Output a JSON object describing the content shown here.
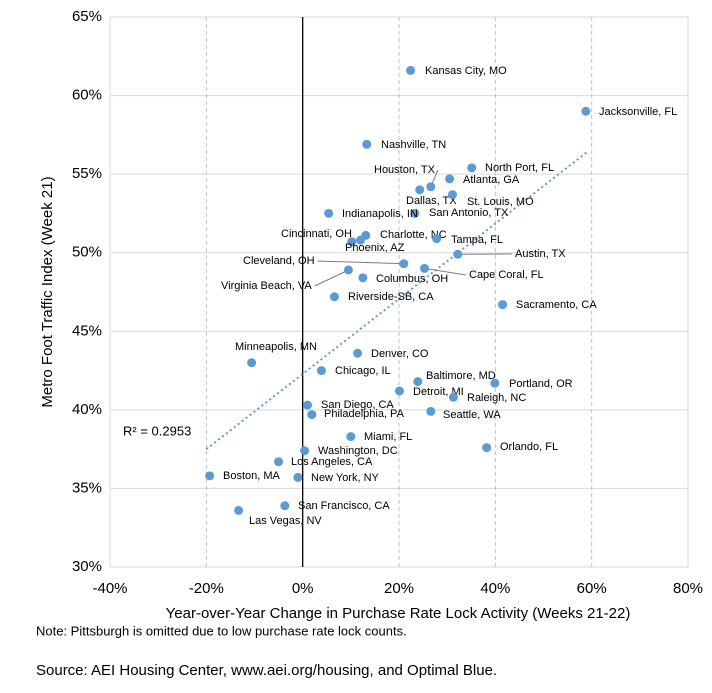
{
  "chart_data": {
    "type": "scatter",
    "x_label": "Year-over-Year Change in Purchase Rate Lock Activity (Weeks 21-22)",
    "y_label": "Metro Foot Traffic Index (Week 21)",
    "annotation": "R² = 0.2953",
    "note": "Note: Pittsburgh is omitted due to low purchase rate lock counts.",
    "source": "Source: AEI Housing Center, www.aei.org/housing, and Optimal Blue.",
    "color": "#5b9bd5",
    "grid": true,
    "xlim": [
      -40,
      80
    ],
    "ylim": [
      30,
      65
    ],
    "xticks": [
      {
        "value": -40,
        "label": "-40%"
      },
      {
        "value": -20,
        "label": "-20%"
      },
      {
        "value": 0,
        "label": "0%"
      },
      {
        "value": 20,
        "label": "20%"
      },
      {
        "value": 40,
        "label": "40%"
      },
      {
        "value": 60,
        "label": "60%"
      },
      {
        "value": 80,
        "label": "80%"
      }
    ],
    "yticks": [
      {
        "value": 30,
        "label": "30%"
      },
      {
        "value": 35,
        "label": "35%"
      },
      {
        "value": 40,
        "label": "40%"
      },
      {
        "value": 45,
        "label": "45%"
      },
      {
        "value": 50,
        "label": "50%"
      },
      {
        "value": 55,
        "label": "55%"
      },
      {
        "value": 60,
        "label": "60%"
      },
      {
        "value": 65,
        "label": "65%"
      }
    ],
    "trendline": {
      "x": [
        -20,
        59
      ],
      "y": [
        37.5,
        56.4
      ]
    },
    "labels": [
      "Kansas City, MO",
      "Jacksonville, FL",
      "Nashville, TN",
      "North Port, FL",
      "Atlanta, GA",
      "Houston, TX",
      "Dallas, TX",
      "St. Louis, MO",
      "San Antonio, TX",
      "Indianapolis, IN",
      "Cincinnati, OH",
      "Charlotte, NC",
      "Phoenix, AZ",
      "Tampa, FL",
      "Austin, TX",
      "Cleveland, OH",
      "Cape Coral, FL",
      "Virginia Beach, VA",
      "Columbus, OH",
      "Riverside-SB, CA",
      "Sacramento, CA",
      "Minneapolis, MN",
      "Denver, CO",
      "Chicago, IL",
      "Baltimore, MD",
      "Portland, OR",
      "Detroit, MI",
      "Raleigh, NC",
      "San Diego, CA",
      "Philadelphia, PA",
      "Seattle, WA",
      "Miami, FL",
      "Orlando, FL",
      "Washington, DC",
      "Los Angeles, CA",
      "Boston, MA",
      "New York, NY",
      "San Francisco, CA",
      "Las Vegas, NV"
    ],
    "x": [
      22.4,
      58.8,
      13.3,
      35.1,
      30.5,
      26.6,
      24.3,
      31.1,
      23.3,
      5.4,
      10.2,
      13.1,
      12.0,
      27.8,
      32.2,
      21.0,
      25.3,
      9.5,
      12.5,
      6.6,
      41.5,
      -10.6,
      11.4,
      3.9,
      23.9,
      39.9,
      20.1,
      31.3,
      1.0,
      1.9,
      26.6,
      10.0,
      38.2,
      0.4,
      -5.0,
      -19.3,
      -1.0,
      -3.7,
      -13.3
    ],
    "values": [
      61.6,
      59.0,
      56.9,
      55.4,
      54.7,
      54.2,
      54.0,
      53.7,
      52.5,
      52.5,
      50.7,
      51.1,
      50.8,
      50.9,
      49.9,
      49.3,
      49.0,
      48.9,
      48.4,
      47.2,
      46.7,
      43.0,
      43.6,
      42.5,
      41.8,
      41.7,
      41.2,
      40.8,
      40.3,
      39.7,
      39.9,
      38.3,
      37.6,
      37.4,
      36.7,
      35.8,
      35.7,
      33.9,
      33.6
    ]
  }
}
